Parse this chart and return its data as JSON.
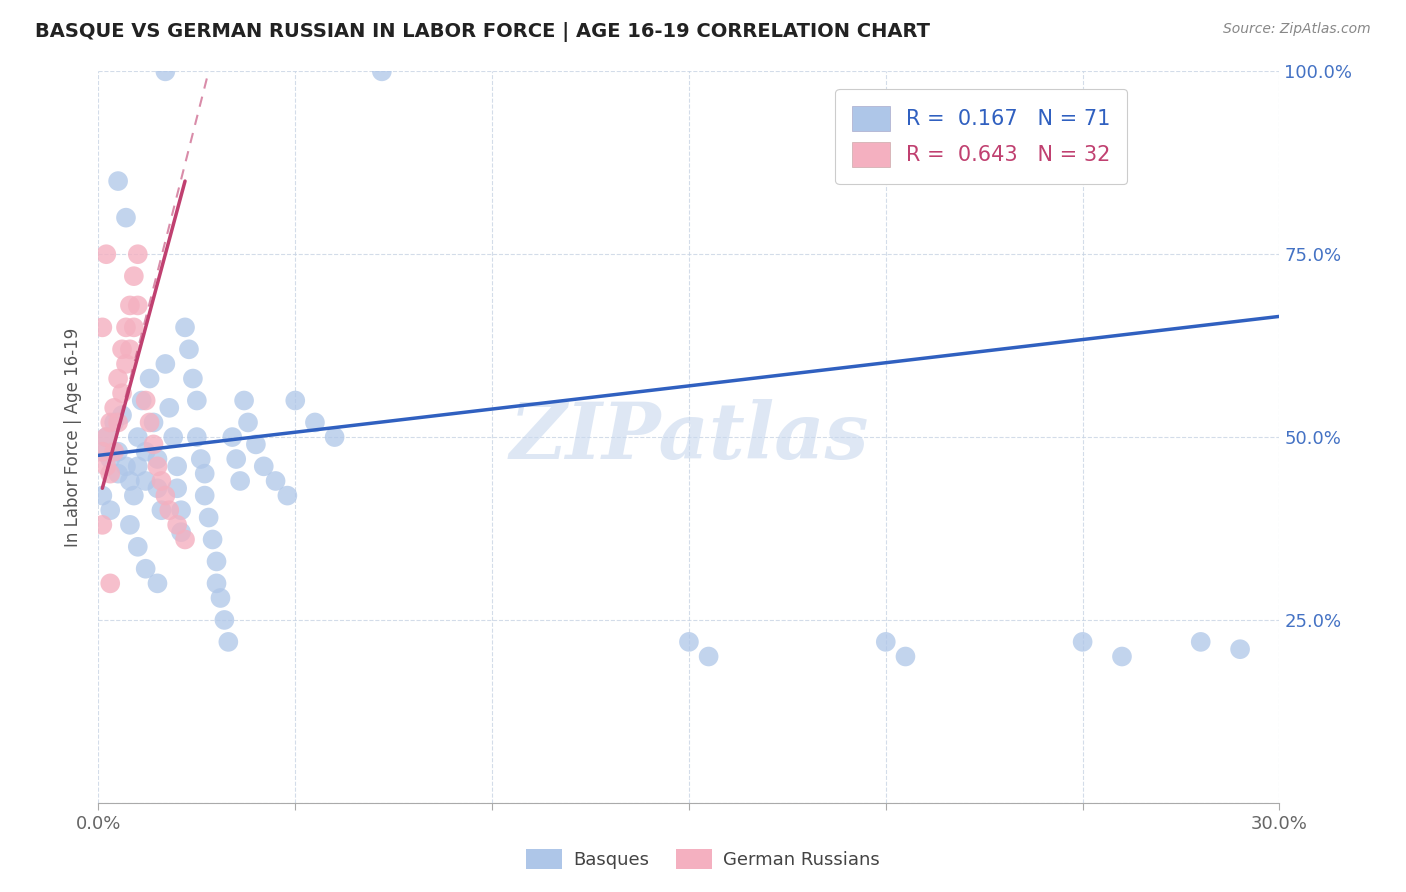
{
  "title": "BASQUE VS GERMAN RUSSIAN IN LABOR FORCE | AGE 16-19 CORRELATION CHART",
  "source_text": "Source: ZipAtlas.com",
  "ylabel": "In Labor Force | Age 16-19",
  "xlim": [
    0.0,
    0.3
  ],
  "ylim": [
    0.0,
    1.0
  ],
  "basque_color": "#aec6e8",
  "german_russian_color": "#f4b0c0",
  "basque_line_color": "#3060c0",
  "german_russian_line_color": "#c04070",
  "watermark_color": "#c8d8ee",
  "basque_points": [
    [
      0.001,
      0.48
    ],
    [
      0.002,
      0.5
    ],
    [
      0.003,
      0.47
    ],
    [
      0.004,
      0.52
    ],
    [
      0.005,
      0.45
    ],
    [
      0.005,
      0.48
    ],
    [
      0.006,
      0.53
    ],
    [
      0.007,
      0.46
    ],
    [
      0.008,
      0.44
    ],
    [
      0.009,
      0.42
    ],
    [
      0.01,
      0.5
    ],
    [
      0.01,
      0.46
    ],
    [
      0.011,
      0.55
    ],
    [
      0.012,
      0.48
    ],
    [
      0.012,
      0.44
    ],
    [
      0.013,
      0.58
    ],
    [
      0.014,
      0.52
    ],
    [
      0.015,
      0.47
    ],
    [
      0.015,
      0.43
    ],
    [
      0.016,
      0.4
    ],
    [
      0.017,
      0.6
    ],
    [
      0.018,
      0.54
    ],
    [
      0.019,
      0.5
    ],
    [
      0.02,
      0.46
    ],
    [
      0.02,
      0.43
    ],
    [
      0.021,
      0.4
    ],
    [
      0.021,
      0.37
    ],
    [
      0.022,
      0.65
    ],
    [
      0.023,
      0.62
    ],
    [
      0.024,
      0.58
    ],
    [
      0.025,
      0.55
    ],
    [
      0.025,
      0.5
    ],
    [
      0.026,
      0.47
    ],
    [
      0.027,
      0.45
    ],
    [
      0.027,
      0.42
    ],
    [
      0.028,
      0.39
    ],
    [
      0.029,
      0.36
    ],
    [
      0.03,
      0.33
    ],
    [
      0.03,
      0.3
    ],
    [
      0.031,
      0.28
    ],
    [
      0.032,
      0.25
    ],
    [
      0.033,
      0.22
    ],
    [
      0.034,
      0.5
    ],
    [
      0.035,
      0.47
    ],
    [
      0.036,
      0.44
    ],
    [
      0.037,
      0.55
    ],
    [
      0.038,
      0.52
    ],
    [
      0.04,
      0.49
    ],
    [
      0.042,
      0.46
    ],
    [
      0.045,
      0.44
    ],
    [
      0.048,
      0.42
    ],
    [
      0.05,
      0.55
    ],
    [
      0.055,
      0.52
    ],
    [
      0.06,
      0.5
    ],
    [
      0.008,
      0.38
    ],
    [
      0.01,
      0.35
    ],
    [
      0.012,
      0.32
    ],
    [
      0.015,
      0.3
    ],
    [
      0.005,
      0.85
    ],
    [
      0.007,
      0.8
    ],
    [
      0.001,
      0.42
    ],
    [
      0.003,
      0.4
    ],
    [
      0.15,
      0.22
    ],
    [
      0.155,
      0.2
    ],
    [
      0.2,
      0.22
    ],
    [
      0.205,
      0.2
    ],
    [
      0.25,
      0.22
    ],
    [
      0.26,
      0.2
    ],
    [
      0.28,
      0.22
    ],
    [
      0.29,
      0.21
    ],
    [
      0.017,
      1.0
    ],
    [
      0.072,
      1.0
    ]
  ],
  "german_russian_points": [
    [
      0.001,
      0.48
    ],
    [
      0.002,
      0.5
    ],
    [
      0.002,
      0.46
    ],
    [
      0.003,
      0.52
    ],
    [
      0.003,
      0.45
    ],
    [
      0.004,
      0.54
    ],
    [
      0.004,
      0.48
    ],
    [
      0.005,
      0.58
    ],
    [
      0.005,
      0.52
    ],
    [
      0.006,
      0.62
    ],
    [
      0.006,
      0.56
    ],
    [
      0.007,
      0.65
    ],
    [
      0.007,
      0.6
    ],
    [
      0.008,
      0.68
    ],
    [
      0.008,
      0.62
    ],
    [
      0.009,
      0.72
    ],
    [
      0.009,
      0.65
    ],
    [
      0.01,
      0.75
    ],
    [
      0.01,
      0.68
    ],
    [
      0.012,
      0.55
    ],
    [
      0.013,
      0.52
    ],
    [
      0.014,
      0.49
    ],
    [
      0.015,
      0.46
    ],
    [
      0.016,
      0.44
    ],
    [
      0.017,
      0.42
    ],
    [
      0.018,
      0.4
    ],
    [
      0.02,
      0.38
    ],
    [
      0.022,
      0.36
    ],
    [
      0.001,
      0.65
    ],
    [
      0.002,
      0.75
    ],
    [
      0.001,
      0.38
    ],
    [
      0.003,
      0.3
    ]
  ],
  "basque_trendline": [
    0.0,
    0.475,
    0.3,
    0.665
  ],
  "german_trendline": [
    0.001,
    0.43,
    0.022,
    0.85
  ],
  "german_trendline_dashed": [
    0.001,
    0.43,
    0.028,
    1.0
  ]
}
